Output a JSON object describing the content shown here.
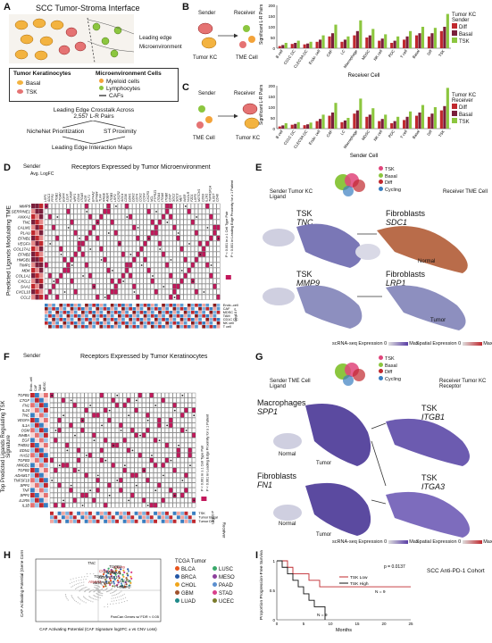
{
  "panels": {
    "A": {
      "label": "A",
      "title": "SCC Tumor-Stroma Interface",
      "leading_edge": "Leading edge",
      "microenv": "Microenvironment",
      "legend_left_title": "Tumor Keratinocytes",
      "legend_right_title": "Microenvironment Cells",
      "legend_items_left": [
        "Basal",
        "TSK"
      ],
      "legend_items_right": [
        "Myeloid cells",
        "Lymphocytes",
        "CAFs"
      ],
      "flow1": "Leading Edge Crosstalk Across",
      "flow1b": "2,557 L-R Pairs",
      "flow_left": "NicheNet Prioritization",
      "flow_right": "ST Proximity",
      "flow_bottom": "Leading Edge Interaction Maps"
    },
    "B": {
      "label": "B",
      "sender": "Sender",
      "receiver": "Receiver",
      "cell_left": "Tumor KC",
      "cell_right": "TME Cell",
      "ylabel": "Significant L-R Pairs",
      "xlabel": "Receiver Cell",
      "legend_title": "Tumor KC Sender",
      "legend": [
        "Diff",
        "Basal",
        "TSK"
      ]
    },
    "C": {
      "label": "C",
      "sender": "Sender",
      "receiver": "Receiver",
      "cell_left": "TME Cell",
      "cell_right": "Tumor KC",
      "ylabel": "Significant L-R Pairs",
      "xlabel": "Sender Cell",
      "legend_title": "Tumor KC Receiver",
      "legend": [
        "Diff",
        "Basal",
        "TSK"
      ]
    },
    "D": {
      "label": "D",
      "sender_header": "Sender",
      "receptor_header": "Receptors Expressed by Tumor Microenvironment",
      "side_label": "Predicted Ligands Modulating TME",
      "ligands": [
        "MMP9",
        "SERPINE1",
        "ANXA1",
        "TNC",
        "CALM1",
        "PLAU",
        "EFNB1",
        "VEGFA",
        "COL17A1",
        "EFNB2",
        "HMGB1",
        "TIMP1",
        "MDK",
        "COL1A1",
        "CXCL1",
        "SAA1",
        "CXCL10",
        "CCL2"
      ],
      "receptors": [
        "LRP1",
        "SDC1",
        "FPR1",
        "ITGB1",
        "ITGAV",
        "EGFR",
        "LDLR",
        "PLAUR",
        "NRP1",
        "CD44",
        "ITGA5",
        "KDR",
        "FLT1",
        "EPHA2",
        "EPHB4",
        "TLR4",
        "RAGE",
        "AGER",
        "ITGB3",
        "LRP2",
        "CXCR2",
        "SDC4",
        "CD36",
        "DDR1",
        "DDR2",
        "CD74",
        "CCR2",
        "CCR4",
        "CXCR3",
        "NCL",
        "PTPRZ1",
        "ITGA4",
        "ITGA6",
        "ITGB6",
        "CD47",
        "SDC2",
        "SDC3",
        "MET",
        "INSR",
        "VLDLR",
        "FZD1",
        "LRP5",
        "NOTCH1",
        "CD93",
        "IL1R1",
        "TNFRSF1A",
        "IL6ST",
        "CD40"
      ],
      "receiver_label": "Receiver",
      "receiver_groups": [
        "Endo.-cell",
        "CAF",
        "MDSC",
        "TAM",
        "CD1C DC",
        "NK cell",
        "T cell"
      ],
      "note1": "P < 0.001 in ≥ 1 Cell Type Pair",
      "note2": "P < 0.001 in Leading Edge Proximity for ≥ 1 Patient",
      "scale_label": "Log10 P",
      "avg_label": "Avg. LogFC"
    },
    "E": {
      "label": "E",
      "top_left": "Sender Tumor KC Ligand",
      "top_right": "Receiver TME Cell",
      "legend": [
        "TSK",
        "Basal",
        "Diff",
        "Cycling"
      ],
      "row1_left": "TSK",
      "row1_left_gene": "TNC",
      "row1_right": "Fibroblasts",
      "row1_right_gene": "SDC1",
      "row2_left": "TSK",
      "row2_left_gene": "MMP9",
      "row2_right": "Fibroblasts",
      "row2_right_gene": "LRP1",
      "normal": "Normal",
      "tumor": "Tumor",
      "sc_label": "scRNA-seq Expression",
      "st_label": "Spatial Expression",
      "min": "0",
      "max": "Max"
    },
    "F": {
      "label": "F",
      "sender_header": "Sender",
      "receptor_header": "Receptors Expressed by Tumor Keratinocytes",
      "side_label": "Top Predicted Ligands Regulating TSK Signature",
      "ligands": [
        "TGFB1",
        "CTGF",
        "FN1",
        "IL24",
        "TNC",
        "VEGFA",
        "IL1A",
        "OSM",
        "INHBA",
        "EGF",
        "THBS1",
        "EDN1",
        "HAS2",
        "TGFB3",
        "HMGB1",
        "TGFB2",
        "ADAM17",
        "TNFSF10",
        "SPP1",
        "TNF",
        "SPP1",
        "IL1RN",
        "IL1B"
      ],
      "senders": [
        "Endo.-cell",
        "CAF",
        "TAM",
        "MDSC"
      ],
      "receptor_count": 38,
      "receiver_label": "Receiver",
      "receiver_groups": [
        "TSK",
        "Tumor Basal",
        "Tumor Diff"
      ],
      "note1": "P < 0.001 in ≥ 1 Cell Type Pair",
      "note2": "P < 0.001 in Leading Edge Proximity for ≥ 1 Patient",
      "scale_label": "Log10 P"
    },
    "G": {
      "label": "G",
      "top_left": "Sender TME Cell Ligand",
      "top_right": "Receiver Tumor KC Receptor",
      "legend": [
        "TSK",
        "Basal",
        "Diff",
        "Cycling"
      ],
      "row1_left": "Macrophages",
      "row1_left_gene": "SPP1",
      "row1_right": "TSK",
      "row1_right_gene": "ITGB1",
      "row2_left": "Fibroblasts",
      "row2_left_gene": "FN1",
      "row2_right": "TSK",
      "row2_right_gene": "ITGA3",
      "normal": "Normal",
      "tumor": "Tumor",
      "sc_label": "scRNA-seq Expression",
      "st_label": "Spatial Expression",
      "min": "0",
      "max": "Max"
    },
    "H": {
      "label": "H",
      "ylabel": "CAF Activating Potential (Gene Correlation with CAF Signature)",
      "xlabel": "CAF Activating Potential (CAF Signature log2FC ± vs CNV Loss)",
      "annot": "PanCan Genes w/ FDR < 0.05",
      "genes": [
        "TNC",
        "CALM1",
        "SERPINE2",
        "MMP9",
        "SERPINE1",
        "TIMP1",
        "EFNB2",
        "ANXA1",
        "TGFB1",
        "TGFA",
        "PLAU",
        "COL17A1",
        "CCL2"
      ],
      "legend_title": "TCGA Tumor",
      "tumors": [
        "BLCA",
        "LUSC",
        "BRCA",
        "MESO",
        "CHOL",
        "PAAD",
        "GBM",
        "STAD",
        "LUAD",
        "UCEC"
      ],
      "tumor_colors": [
        "#e8541c",
        "#39a86a",
        "#2457a6",
        "#8d3f9c",
        "#f0a51b",
        "#5b8fcf",
        "#a0522d",
        "#d9408a",
        "#1f8a8a",
        "#7a7a2a"
      ]
    },
    "I": {
      "label": "I",
      "title": "SCC Anti-PD-1 Cohort",
      "pvalue": "p = 0.0137",
      "ylabel": "Proportion Progression-Free Survival",
      "xlabel": "Months",
      "legend": [
        "TSK Low",
        "TSK High"
      ],
      "n_low": "N = 9",
      "n_high": "N = 9"
    }
  },
  "colors": {
    "diff": "#c0282e",
    "basal": "#7a1f3b",
    "tsk": "#8cc63f",
    "tsk_pink": "#e0457b",
    "red": "#c0282e",
    "blue": "#3a7fc1",
    "teal": "#2f8f8f",
    "magenta": "#c2185b"
  },
  "chart_data": [
    {
      "type": "bar",
      "categories": [
        "B cell",
        "CD1C DC",
        "CLEC9A DC",
        "Endo. cell",
        "CAF",
        "LC",
        "Macrophage",
        "MDSC",
        "NK cell",
        "PDC",
        "T cell",
        "Basal",
        "Diff",
        "TSK"
      ],
      "series": [
        {
          "name": "Diff",
          "values": [
            10,
            20,
            18,
            30,
            55,
            30,
            60,
            50,
            35,
            25,
            40,
            60,
            55,
            80
          ]
        },
        {
          "name": "Basal",
          "values": [
            15,
            25,
            22,
            40,
            70,
            40,
            80,
            60,
            45,
            35,
            55,
            70,
            70,
            100
          ]
        },
        {
          "name": "TSK",
          "values": [
            25,
            35,
            30,
            60,
            110,
            55,
            130,
            90,
            65,
            55,
            80,
            100,
            95,
            160
          ]
        }
      ],
      "xlabel": "Receiver Cell",
      "ylabel": "Significant L-R Pairs",
      "ylim": [
        0,
        200
      ]
    },
    {
      "type": "bar",
      "categories": [
        "B cell",
        "CD1C DC",
        "CLEC9A DC",
        "Endo. cell",
        "CAF",
        "LC",
        "Macrophage",
        "MDSC",
        "NK cell",
        "PDC",
        "T cell",
        "Basal",
        "Diff",
        "TSK"
      ],
      "series": [
        {
          "name": "Diff",
          "values": [
            10,
            18,
            16,
            35,
            60,
            30,
            70,
            55,
            35,
            25,
            40,
            60,
            55,
            85
          ]
        },
        {
          "name": "Basal",
          "values": [
            15,
            22,
            20,
            45,
            75,
            38,
            85,
            65,
            45,
            35,
            55,
            75,
            70,
            105
          ]
        },
        {
          "name": "TSK",
          "values": [
            25,
            30,
            28,
            65,
            120,
            50,
            140,
            95,
            65,
            55,
            80,
            110,
            100,
            190
          ]
        }
      ],
      "xlabel": "Sender Cell",
      "ylabel": "Significant L-R Pairs",
      "ylim": [
        0,
        200
      ]
    },
    {
      "type": "line",
      "title": "SCC Anti-PD-1 Cohort",
      "xlabel": "Months",
      "ylabel": "Proportion Progression-Free Survival",
      "series": [
        {
          "name": "TSK Low",
          "x": [
            0,
            2,
            3,
            6,
            8,
            12,
            25
          ],
          "y": [
            1.0,
            0.89,
            0.78,
            0.67,
            0.56,
            0.56,
            0.56
          ]
        },
        {
          "name": "TSK High",
          "x": [
            0,
            1,
            2,
            3,
            4,
            5,
            6,
            7,
            9
          ],
          "y": [
            1.0,
            0.89,
            0.78,
            0.67,
            0.56,
            0.44,
            0.33,
            0.22,
            0.0
          ]
        }
      ],
      "xlim": [
        0,
        25
      ],
      "ylim": [
        0,
        1
      ]
    }
  ]
}
